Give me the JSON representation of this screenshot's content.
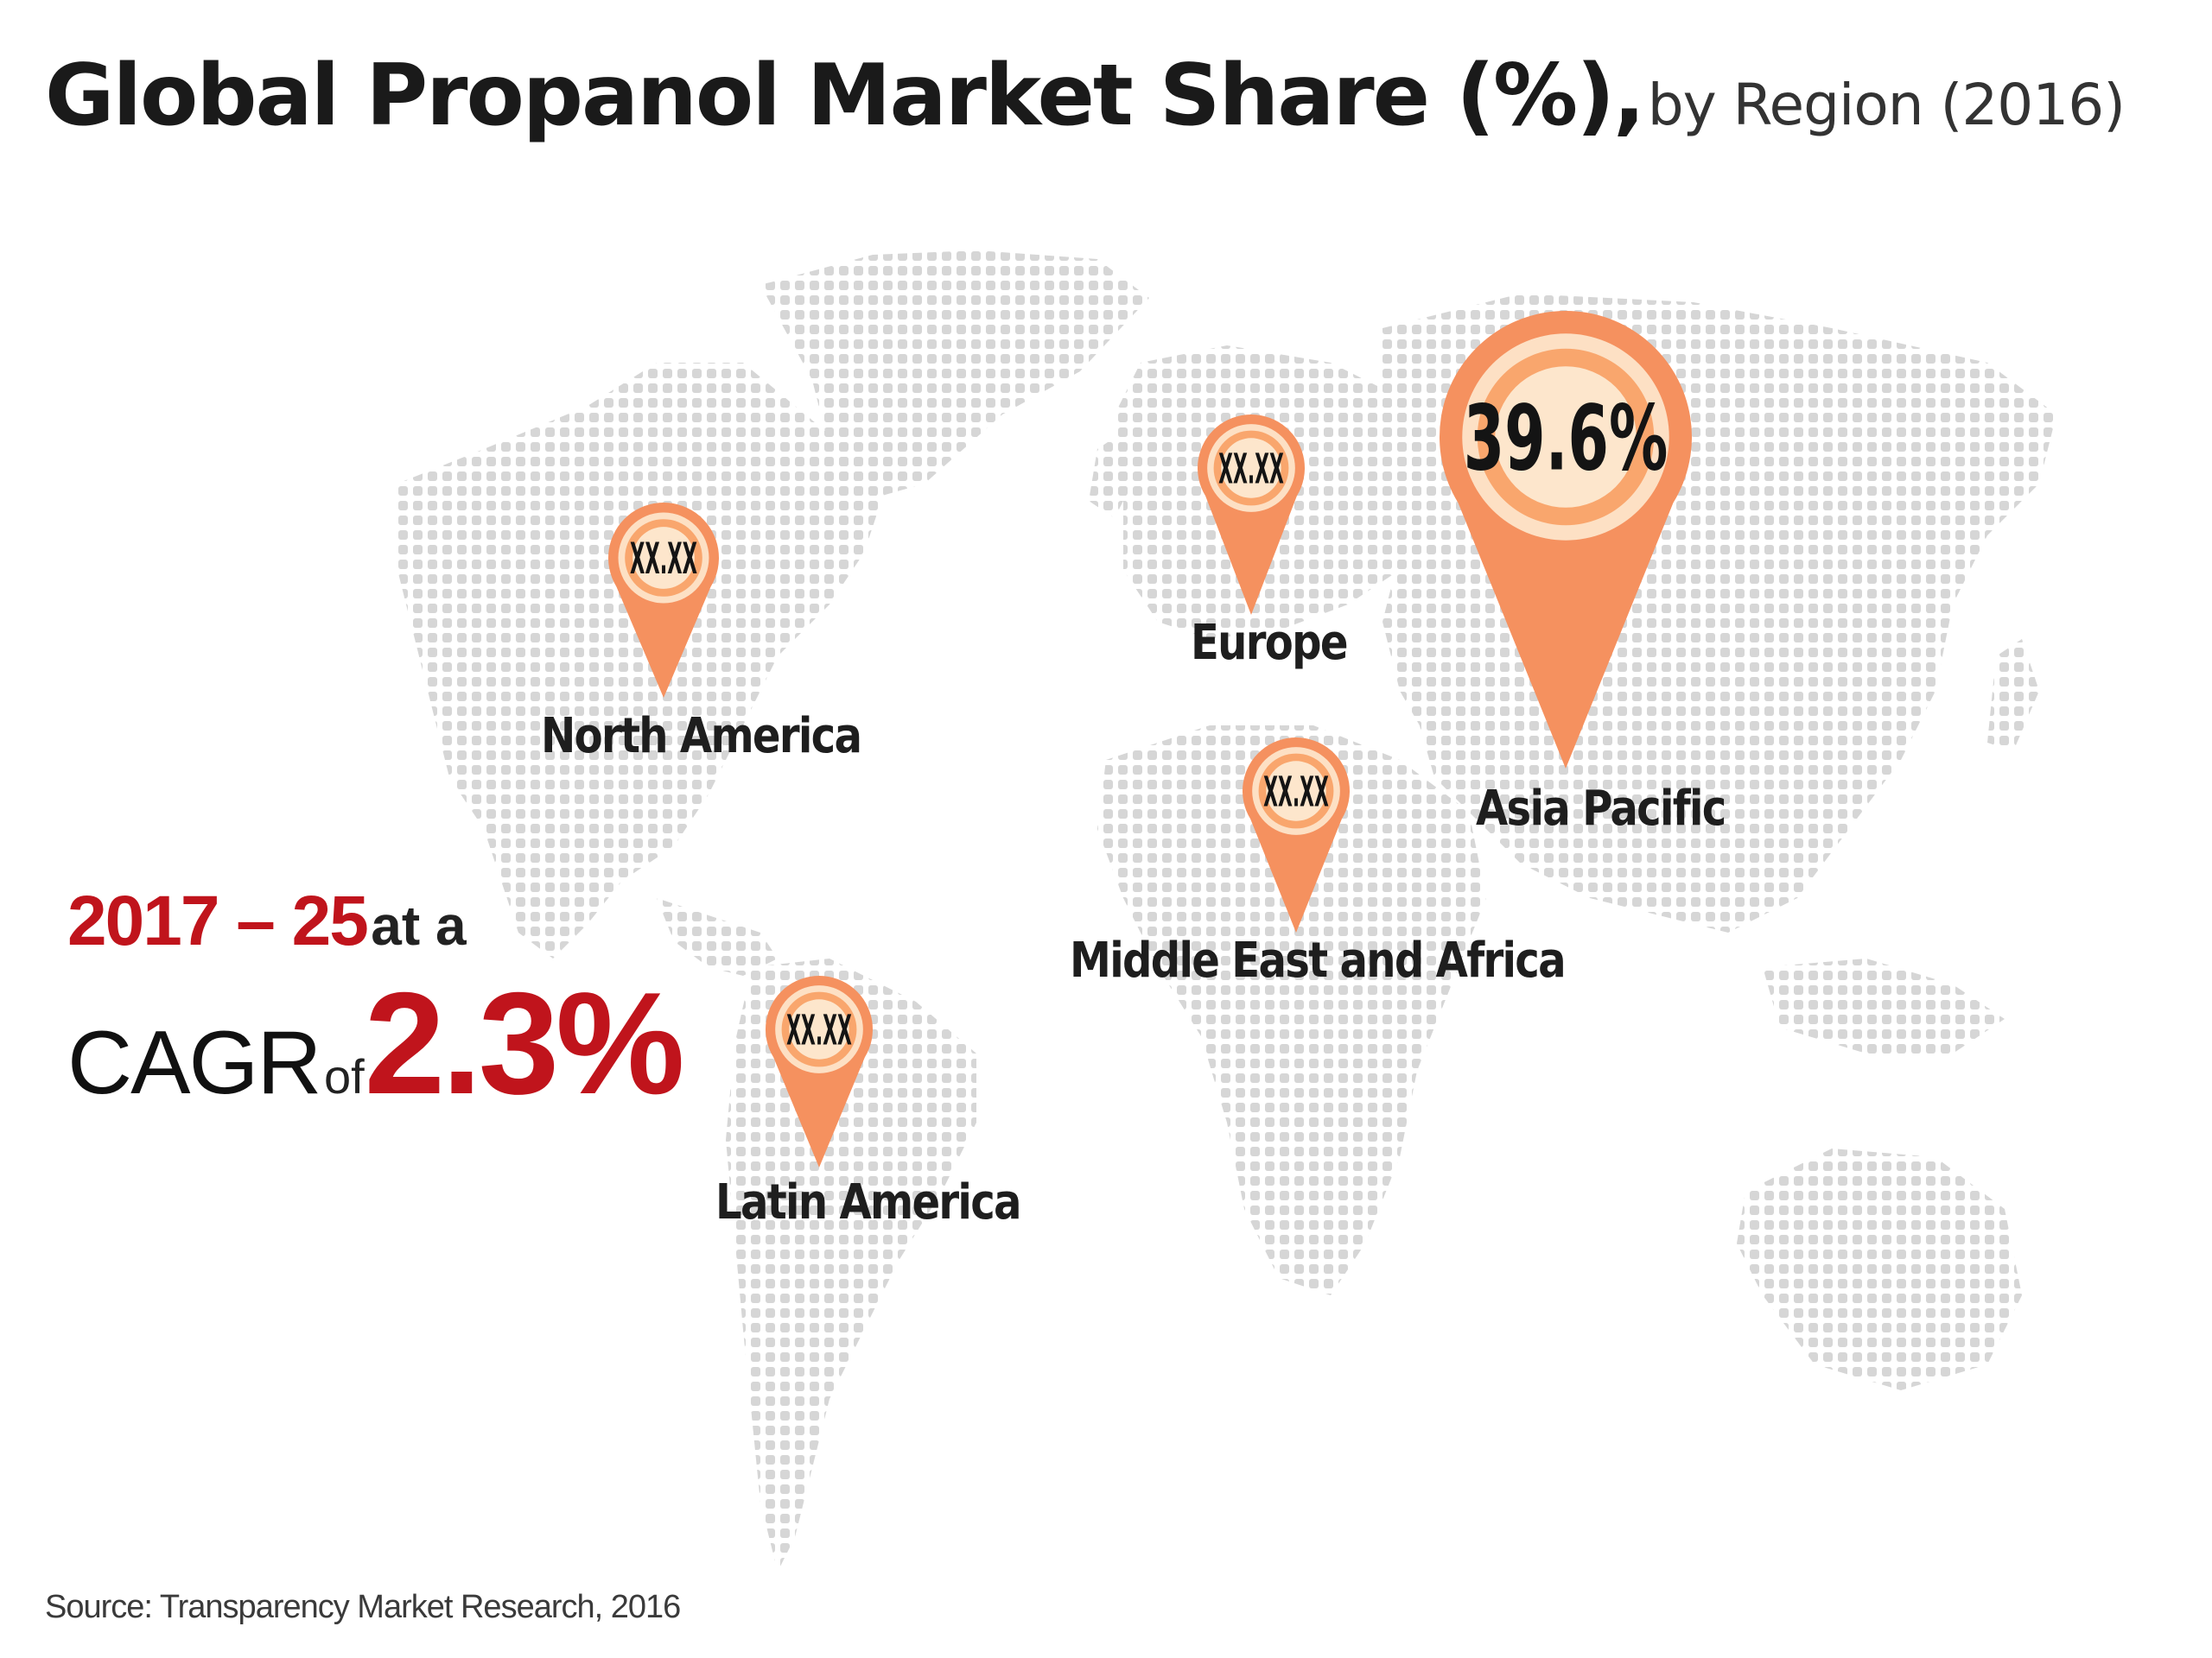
{
  "title": {
    "main": "Global Propanol Market Share (%),",
    "sub": "by Region (2016)"
  },
  "regions": [
    {
      "name": "North America",
      "share": "XX.XX"
    },
    {
      "name": "Europe",
      "share": "XX.XX"
    },
    {
      "name": "Asia Pacific",
      "share": "39.6%"
    },
    {
      "name": "Middle East and Africa",
      "share": "XX.XX"
    },
    {
      "name": "Latin America",
      "share": "XX.XX"
    }
  ],
  "cagr": {
    "years": "2017 – 25",
    "at_a": "at a",
    "label": "CAGR",
    "of": "of",
    "value": "2.3%"
  },
  "source": "Source: Transparency Market Research, 2016",
  "colors": {
    "pin_outer": "#f5915f",
    "pin_ring": "#fde0c4",
    "pin_inner": "#f9a66d",
    "pin_center": "#fde6cc",
    "accent_red": "#c0141c",
    "map_dots": "#d4d4d4"
  }
}
